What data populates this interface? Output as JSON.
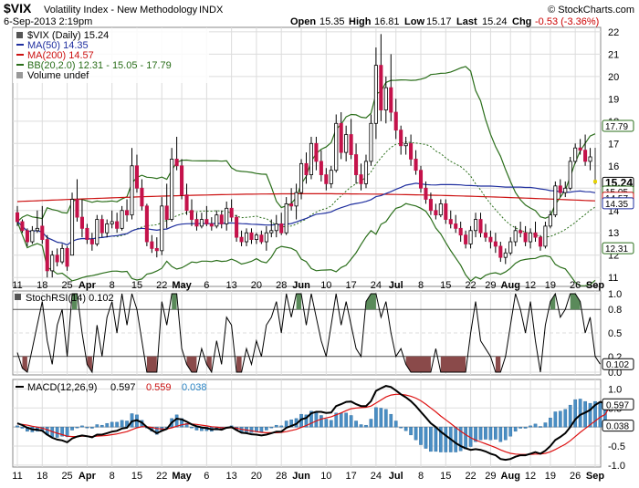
{
  "header": {
    "symbol": "$VIX",
    "name": "Volatility Index - New Methodology",
    "exchange": "INDX",
    "date": "6-Sep-2013 2:19pm",
    "brand": "© StockCharts.com",
    "open_label": "Open",
    "open": "15.35",
    "high_label": "High",
    "high": "16.81",
    "low_label": "Low",
    "low": "15.17",
    "last_label": "Last",
    "last": "15.24",
    "chg_label": "Chg",
    "chg": "-0.53 (-3.36%)"
  },
  "legend": {
    "main": "$VIX (Daily) 15.24",
    "ma50": "MA(50) 14.35",
    "ma200": "MA(200) 14.57",
    "bb": "BB(20,2.0) 12.31 - 15.05 - 17.79",
    "volume": "Volume undef",
    "stochrsi": "StochRSI(14) 0.102",
    "macd_label": "MACD(12,26,9)",
    "macd_v1": "0.597",
    "macd_v2": "0.559",
    "macd_v3": "0.038"
  },
  "colors": {
    "ma50": "#1f2f9f",
    "ma200": "#cc1111",
    "bb": "#2a6e1a",
    "candle_up": "#000000",
    "candle_down": "#c4124a",
    "last_candle": "#e8d400",
    "stoch_fill_high": "#5a8a5a",
    "stoch_fill_low": "#8a4a4a",
    "hist": "#4a8ec4",
    "macd_signal": "#dd1111"
  },
  "chart_data": [
    {
      "type": "candlestick",
      "title": "$VIX (Daily)",
      "y_ticks": [
        11,
        12,
        13,
        14,
        15,
        16,
        17,
        18,
        19,
        20,
        21,
        22
      ],
      "ylim": [
        10.6,
        22.2
      ],
      "x_labels": [
        "11",
        "18",
        "25",
        "Apr",
        "8",
        "15",
        "22",
        "May",
        "6",
        "13",
        "20",
        "28",
        "Jun",
        "10",
        "17",
        "24",
        "Jul",
        "8",
        "15",
        "22",
        "29",
        "Aug",
        "12",
        "19",
        "26",
        "Sep"
      ],
      "price_labels": [
        "17.79",
        "15.24",
        "15.05",
        "14.57",
        "14.35",
        "12.31"
      ],
      "ohlc": [
        [
          13.9,
          14.2,
          13.3,
          13.5
        ],
        [
          13.5,
          13.6,
          13.0,
          13.1
        ],
        [
          13.1,
          13.2,
          12.4,
          12.6
        ],
        [
          12.6,
          13.3,
          12.5,
          13.1
        ],
        [
          13.1,
          14.0,
          13.0,
          13.2
        ],
        [
          13.3,
          14.2,
          12.5,
          12.7
        ],
        [
          12.7,
          12.9,
          11.0,
          11.3
        ],
        [
          11.3,
          12.2,
          11.0,
          12.0
        ],
        [
          12.0,
          12.3,
          11.5,
          11.7
        ],
        [
          11.7,
          12.5,
          11.6,
          12.3
        ],
        [
          12.3,
          12.4,
          11.3,
          11.5
        ],
        [
          12.0,
          14.8,
          12.0,
          14.5
        ],
        [
          14.5,
          15.4,
          13.5,
          13.7
        ],
        [
          13.7,
          14.5,
          12.8,
          13.2
        ],
        [
          13.2,
          13.4,
          12.5,
          12.7
        ],
        [
          12.7,
          13.0,
          12.2,
          12.5
        ],
        [
          12.5,
          13.8,
          12.4,
          13.6
        ],
        [
          13.6,
          13.8,
          12.8,
          13.0
        ],
        [
          13.0,
          13.6,
          12.8,
          13.4
        ],
        [
          13.4,
          14.0,
          13.2,
          13.5
        ],
        [
          13.5,
          13.9,
          13.0,
          13.2
        ],
        [
          13.2,
          14.2,
          13.1,
          14.0
        ],
        [
          14.0,
          14.5,
          13.5,
          13.8
        ],
        [
          13.8,
          16.8,
          13.6,
          16.0
        ],
        [
          16.0,
          16.5,
          14.8,
          15.0
        ],
        [
          15.0,
          15.4,
          14.0,
          14.2
        ],
        [
          14.2,
          14.3,
          12.4,
          12.6
        ],
        [
          12.6,
          12.9,
          12.1,
          12.3
        ],
        [
          12.3,
          12.8,
          11.9,
          12.2
        ],
        [
          12.2,
          14.6,
          12.0,
          14.2
        ],
        [
          14.2,
          15.2,
          13.2,
          13.6
        ],
        [
          13.6,
          16.8,
          13.5,
          16.3
        ],
        [
          16.3,
          17.3,
          15.8,
          16.0
        ],
        [
          16.0,
          16.3,
          14.5,
          14.7
        ],
        [
          14.7,
          15.2,
          13.8,
          14.0
        ],
        [
          14.0,
          14.5,
          13.3,
          13.6
        ],
        [
          13.6,
          13.9,
          13.1,
          13.3
        ],
        [
          13.3,
          13.9,
          13.2,
          13.6
        ],
        [
          13.6,
          14.2,
          13.3,
          13.4
        ],
        [
          13.4,
          13.7,
          13.1,
          13.3
        ],
        [
          13.3,
          14.0,
          13.2,
          13.8
        ],
        [
          13.8,
          14.0,
          13.2,
          13.4
        ],
        [
          13.4,
          14.4,
          13.1,
          14.1
        ],
        [
          14.1,
          14.5,
          13.5,
          13.7
        ],
        [
          13.7,
          13.8,
          12.6,
          12.8
        ],
        [
          12.8,
          13.1,
          12.4,
          12.6
        ],
        [
          12.6,
          13.2,
          12.4,
          13.0
        ],
        [
          13.0,
          13.2,
          12.5,
          12.7
        ],
        [
          12.7,
          13.0,
          12.5,
          12.9
        ],
        [
          12.9,
          13.1,
          12.5,
          12.6
        ],
        [
          12.6,
          13.3,
          12.2,
          13.0
        ],
        [
          13.0,
          13.6,
          12.8,
          13.1
        ],
        [
          13.1,
          13.8,
          12.8,
          13.4
        ],
        [
          13.4,
          13.9,
          12.9,
          13.0
        ],
        [
          13.0,
          14.6,
          12.9,
          14.3
        ],
        [
          14.3,
          15.0,
          14.0,
          14.2
        ],
        [
          14.2,
          15.2,
          13.6,
          14.8
        ],
        [
          14.8,
          16.3,
          14.5,
          16.1
        ],
        [
          16.1,
          16.6,
          15.2,
          15.6
        ],
        [
          15.6,
          17.3,
          15.4,
          17.0
        ],
        [
          17.0,
          17.3,
          15.8,
          16.2
        ],
        [
          16.2,
          16.7,
          15.3,
          15.6
        ],
        [
          15.6,
          15.9,
          14.9,
          15.2
        ],
        [
          15.2,
          16.0,
          15.0,
          15.8
        ],
        [
          15.8,
          18.3,
          15.7,
          17.9
        ],
        [
          17.9,
          18.4,
          16.3,
          16.6
        ],
        [
          16.6,
          17.8,
          16.2,
          17.4
        ],
        [
          17.4,
          18.1,
          16.3,
          16.5
        ],
        [
          16.5,
          17.0,
          15.2,
          15.6
        ],
        [
          15.6,
          16.1,
          14.9,
          15.2
        ],
        [
          15.2,
          16.5,
          15.0,
          16.2
        ],
        [
          16.2,
          18.3,
          16.0,
          17.9
        ],
        [
          17.9,
          21.3,
          17.2,
          20.5
        ],
        [
          20.5,
          21.9,
          18.0,
          18.5
        ],
        [
          18.5,
          20.0,
          17.9,
          19.5
        ],
        [
          19.5,
          21.0,
          18.0,
          18.4
        ],
        [
          18.4,
          19.0,
          17.2,
          17.6
        ],
        [
          17.6,
          17.8,
          16.5,
          16.9
        ],
        [
          16.9,
          17.3,
          16.5,
          17.0
        ],
        [
          17.0,
          17.4,
          16.0,
          16.3
        ],
        [
          16.3,
          16.7,
          15.6,
          15.8
        ],
        [
          15.8,
          16.0,
          14.8,
          15.0
        ],
        [
          15.0,
          15.3,
          14.3,
          14.5
        ],
        [
          14.5,
          14.8,
          13.8,
          14.0
        ],
        [
          14.0,
          14.3,
          13.6,
          13.8
        ],
        [
          13.8,
          14.5,
          13.7,
          14.3
        ],
        [
          14.3,
          14.5,
          13.4,
          13.6
        ],
        [
          13.6,
          14.0,
          13.2,
          13.4
        ],
        [
          13.4,
          13.8,
          13.0,
          13.2
        ],
        [
          13.2,
          13.5,
          12.6,
          12.9
        ],
        [
          12.9,
          13.1,
          12.3,
          12.5
        ],
        [
          12.5,
          13.3,
          12.3,
          13.1
        ],
        [
          13.1,
          13.9,
          12.8,
          13.6
        ],
        [
          13.6,
          13.9,
          12.8,
          13.0
        ],
        [
          13.0,
          13.4,
          12.6,
          12.8
        ],
        [
          12.8,
          13.1,
          12.3,
          12.6
        ],
        [
          12.6,
          13.0,
          12.1,
          12.4
        ],
        [
          12.4,
          12.6,
          11.7,
          11.9
        ],
        [
          11.9,
          12.3,
          11.6,
          12.1
        ],
        [
          12.1,
          12.8,
          12.0,
          12.6
        ],
        [
          12.6,
          13.3,
          12.4,
          13.1
        ],
        [
          13.1,
          13.5,
          12.8,
          13.0
        ],
        [
          13.0,
          13.3,
          12.4,
          12.6
        ],
        [
          12.6,
          13.2,
          12.3,
          13.0
        ],
        [
          13.0,
          13.5,
          12.6,
          12.8
        ],
        [
          12.8,
          12.9,
          12.2,
          12.4
        ],
        [
          12.4,
          13.5,
          12.3,
          13.3
        ],
        [
          13.3,
          14.0,
          13.2,
          13.8
        ],
        [
          13.8,
          15.3,
          13.7,
          15.1
        ],
        [
          15.1,
          15.4,
          14.6,
          14.8
        ],
        [
          14.8,
          15.3,
          14.6,
          15.0
        ],
        [
          15.0,
          16.4,
          14.9,
          16.2
        ],
        [
          16.2,
          17.0,
          16.1,
          16.8
        ],
        [
          16.8,
          17.2,
          16.5,
          16.7
        ],
        [
          16.7,
          17.4,
          16.0,
          16.2
        ],
        [
          16.2,
          16.8,
          15.8,
          16.4
        ],
        [
          15.35,
          16.81,
          15.17,
          15.24
        ]
      ]
    },
    {
      "type": "line",
      "title": "StochRSI(14)",
      "y_ticks": [
        0.0,
        0.2,
        0.5,
        0.8,
        1.0
      ],
      "ylim": [
        0,
        1
      ],
      "last_label": "0.102",
      "values": [
        0.25,
        0.05,
        0.0,
        0.3,
        0.6,
        0.9,
        0.4,
        0.1,
        0.6,
        0.8,
        0.2,
        1.0,
        1.0,
        0.5,
        0.1,
        0.0,
        0.6,
        0.2,
        0.7,
        0.9,
        0.5,
        1.0,
        0.6,
        1.0,
        0.8,
        0.4,
        0.0,
        0.0,
        0.0,
        0.9,
        0.6,
        1.0,
        1.0,
        0.3,
        0.1,
        0.0,
        0.0,
        0.3,
        0.1,
        0.0,
        0.4,
        0.1,
        0.7,
        0.6,
        0.0,
        0.0,
        0.3,
        0.1,
        0.4,
        0.2,
        0.6,
        0.7,
        0.9,
        0.5,
        1.0,
        0.7,
        1.0,
        1.0,
        0.6,
        1.0,
        0.7,
        0.4,
        0.2,
        0.6,
        1.0,
        0.6,
        0.9,
        0.6,
        0.3,
        0.2,
        0.9,
        1.0,
        1.0,
        0.7,
        0.9,
        0.5,
        0.2,
        0.3,
        0.1,
        0.0,
        0.0,
        0.0,
        0.0,
        0.0,
        0.3,
        0.0,
        0.0,
        0.0,
        0.0,
        0.0,
        0.0,
        0.5,
        0.9,
        0.4,
        0.3,
        0.2,
        0.0,
        0.0,
        0.2,
        0.6,
        1.0,
        0.8,
        0.5,
        0.9,
        0.4,
        0.0,
        0.6,
        0.9,
        1.0,
        0.7,
        0.8,
        1.0,
        1.0,
        0.9,
        0.5,
        0.7,
        0.2,
        0.102
      ]
    },
    {
      "type": "line+bar",
      "title": "MACD(12,26,9)",
      "y_ticks": [
        -1.0,
        -0.5,
        0.0,
        0.5,
        1.0
      ],
      "ylim": [
        -1.05,
        1.25
      ],
      "labels": [
        "0.597",
        "0.038"
      ],
      "macd": [
        0.1,
        0.05,
        -0.02,
        -0.06,
        -0.07,
        -0.1,
        -0.2,
        -0.28,
        -0.33,
        -0.35,
        -0.4,
        -0.3,
        -0.25,
        -0.22,
        -0.24,
        -0.27,
        -0.2,
        -0.2,
        -0.16,
        -0.12,
        -0.1,
        -0.04,
        -0.02,
        0.15,
        0.18,
        0.12,
        0.0,
        -0.08,
        -0.16,
        -0.1,
        -0.05,
        0.12,
        0.22,
        0.2,
        0.14,
        0.07,
        0.02,
        -0.01,
        -0.03,
        -0.06,
        -0.05,
        -0.07,
        -0.02,
        0.0,
        -0.08,
        -0.15,
        -0.16,
        -0.19,
        -0.2,
        -0.22,
        -0.2,
        -0.16,
        -0.12,
        -0.12,
        -0.02,
        0.03,
        0.08,
        0.2,
        0.24,
        0.36,
        0.4,
        0.4,
        0.37,
        0.38,
        0.55,
        0.6,
        0.66,
        0.67,
        0.6,
        0.55,
        0.55,
        0.68,
        0.95,
        1.02,
        1.08,
        1.05,
        0.96,
        0.86,
        0.78,
        0.68,
        0.55,
        0.4,
        0.25,
        0.1,
        0.0,
        -0.12,
        -0.22,
        -0.32,
        -0.42,
        -0.5,
        -0.56,
        -0.6,
        -0.58,
        -0.6,
        -0.64,
        -0.7,
        -0.74,
        -0.84,
        -0.86,
        -0.84,
        -0.78,
        -0.74,
        -0.74,
        -0.7,
        -0.66,
        -0.7,
        -0.62,
        -0.5,
        -0.34,
        -0.26,
        -0.16,
        0.0,
        0.2,
        0.32,
        0.38,
        0.45,
        0.58,
        0.66,
        0.62,
        0.597
      ],
      "signal": [
        0.08,
        0.07,
        0.05,
        0.02,
        0.0,
        -0.03,
        -0.07,
        -0.12,
        -0.16,
        -0.2,
        -0.24,
        -0.25,
        -0.25,
        -0.24,
        -0.24,
        -0.25,
        -0.24,
        -0.23,
        -0.22,
        -0.2,
        -0.18,
        -0.15,
        -0.12,
        -0.07,
        -0.02,
        0.01,
        0.01,
        -0.01,
        -0.04,
        -0.05,
        -0.05,
        -0.02,
        0.02,
        0.06,
        0.08,
        0.08,
        0.07,
        0.05,
        0.03,
        0.01,
        0.0,
        -0.02,
        -0.02,
        -0.02,
        -0.03,
        -0.06,
        -0.08,
        -0.1,
        -0.12,
        -0.14,
        -0.15,
        -0.15,
        -0.15,
        -0.14,
        -0.12,
        -0.09,
        -0.06,
        -0.01,
        0.04,
        0.1,
        0.16,
        0.21,
        0.24,
        0.27,
        0.32,
        0.37,
        0.43,
        0.48,
        0.5,
        0.51,
        0.52,
        0.55,
        0.63,
        0.71,
        0.79,
        0.84,
        0.86,
        0.86,
        0.84,
        0.81,
        0.76,
        0.69,
        0.6,
        0.5,
        0.4,
        0.29,
        0.19,
        0.09,
        -0.01,
        -0.11,
        -0.2,
        -0.28,
        -0.34,
        -0.39,
        -0.44,
        -0.49,
        -0.54,
        -0.6,
        -0.65,
        -0.69,
        -0.71,
        -0.72,
        -0.72,
        -0.72,
        -0.71,
        -0.71,
        -0.69,
        -0.65,
        -0.59,
        -0.52,
        -0.45,
        -0.36,
        -0.25,
        -0.14,
        -0.04,
        0.06,
        0.16,
        0.26,
        0.33,
        0.559
      ]
    }
  ]
}
